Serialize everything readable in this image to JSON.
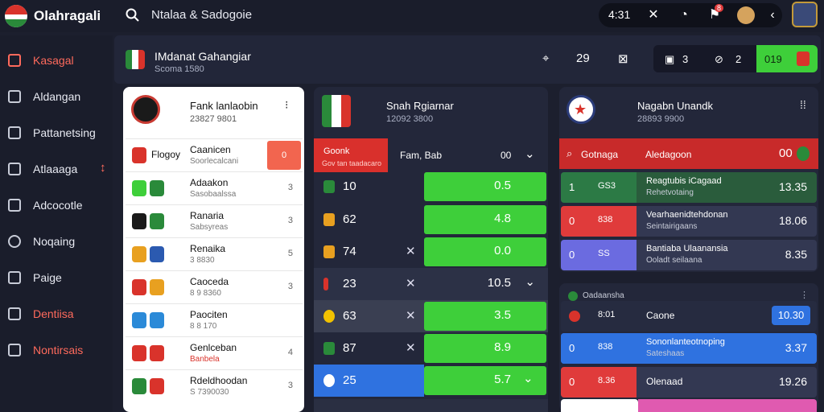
{
  "app": {
    "name": "Olahragali",
    "search_text": "Ntalaa & Sadogoie"
  },
  "topbar": {
    "time": "4:31",
    "badge": "8"
  },
  "sidebar": {
    "items": [
      {
        "label": "Kasagal",
        "active": true
      },
      {
        "label": "Aldangan",
        "active": false
      },
      {
        "label": "Pattanetsing",
        "active": false
      },
      {
        "label": "Atlaaaga",
        "active": false
      },
      {
        "label": "Adcocotle",
        "active": false
      },
      {
        "label": "Noqaing",
        "active": false
      },
      {
        "label": "Paige",
        "active": false
      },
      {
        "label": "Dentiisa",
        "active": true
      },
      {
        "label": "Nontirsais",
        "active": true
      }
    ]
  },
  "header": {
    "title": "IMdanat Gahangiar",
    "subtitle": "Scoma 1580",
    "tool_count": "29",
    "score_a": "3",
    "score_b": "2",
    "score_c": "019"
  },
  "card_left": {
    "title": "Fank lanlaobin",
    "subtitle": "23827 9801",
    "rows": [
      {
        "team": "Caanicen",
        "sub": "Soorlecalcani",
        "odds": "Flogoy",
        "value": "0"
      },
      {
        "team": "Adaakon",
        "sub": "Sasobaalssa",
        "value": "3"
      },
      {
        "team": "Ranaria",
        "sub": "Sabsyreas",
        "value": "3"
      },
      {
        "team": "Renaika",
        "sub": "3 8830",
        "value": "5"
      },
      {
        "team": "Caoceda",
        "sub": "8 9 8360",
        "value": "3"
      },
      {
        "team": "Paociten",
        "sub": "8 8 170",
        "value": ""
      },
      {
        "team": "Genlceban",
        "sub": "Banbela",
        "value": "4"
      },
      {
        "team": "Rdeldhoodan",
        "sub": "S 7390030",
        "value": "3"
      }
    ]
  },
  "card_mid": {
    "title": "Snah Rgiarnar",
    "subtitle": "12092 3800",
    "header_badge": "Goonk",
    "header_sub": "Gov tan taadacaro",
    "header_label": "Fam, Bab",
    "header_value": "00",
    "rows": [
      {
        "num": "10",
        "odds": "0.5",
        "x": false,
        "chev": false,
        "full": true
      },
      {
        "num": "62",
        "odds": "4.8",
        "x": false,
        "chev": false,
        "full": true
      },
      {
        "num": "74",
        "odds": "0.0",
        "x": true,
        "chev": false,
        "full": true
      },
      {
        "num": "23",
        "odds": "10.5",
        "x": true,
        "chev": true,
        "full": false
      },
      {
        "num": "63",
        "odds": "3.5",
        "x": true,
        "chev": false,
        "full": true
      },
      {
        "num": "87",
        "odds": "8.9",
        "x": true,
        "chev": false,
        "full": true
      },
      {
        "num": "25",
        "odds": "5.7",
        "x": false,
        "chev": true,
        "full": true
      }
    ]
  },
  "card_right": {
    "title": "Nagabn Unandk",
    "subtitle": "28893 9900",
    "header_label": "Gotnaga",
    "header_title": "Aledagoon",
    "header_value": "00",
    "rows": [
      {
        "num": "1",
        "label": "GS3",
        "t1": "Reagtubis iCagaad",
        "t2": "Rehetvotaing",
        "v": "13.35",
        "color": "#2c7a45"
      },
      {
        "num": "0",
        "label": "838",
        "t1": "Vearhaenidtehdonan",
        "t2": "Seintairigaans",
        "v": "18.06",
        "color": "#e03b3b"
      },
      {
        "num": "0",
        "label": "SS",
        "t1": "Bantiaba Ulaanansia",
        "t2": "Ooladt seilaana",
        "v": "8.35",
        "color": "#6b6be0"
      }
    ]
  },
  "card_right2": {
    "title": "Oadaansha",
    "rows": [
      {
        "num": "",
        "label": "8:01",
        "t1": "Caone",
        "v": "10.30",
        "color": "#2a3050",
        "badge": true
      },
      {
        "num": "0",
        "label": "838",
        "t1": "Sononlanteotnoping",
        "t2": "Sateshaas",
        "v": "3.37",
        "color": "#2f72e0"
      },
      {
        "num": "0",
        "label": "8.36",
        "t1": "Olenaad",
        "v": "19.26",
        "color": "#e03b3b"
      }
    ]
  }
}
